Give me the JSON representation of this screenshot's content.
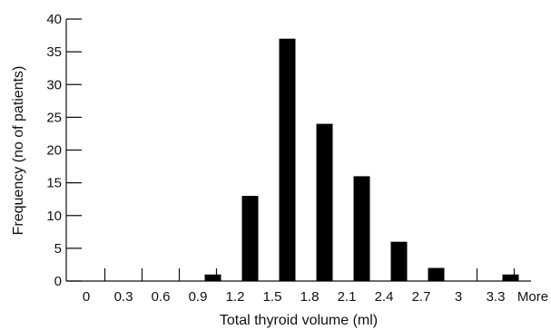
{
  "chart_data": {
    "type": "bar",
    "categories": [
      "0",
      "0.3",
      "0.6",
      "0.9",
      "1.2",
      "1.5",
      "1.8",
      "2.1",
      "2.4",
      "2.7",
      "3",
      "3.3",
      "More"
    ],
    "values": [
      0,
      0,
      0,
      1,
      13,
      37,
      24,
      16,
      6,
      2,
      0,
      1,
      0
    ],
    "xlabel": "Total thyroid volume (ml)",
    "ylabel": "Frequency (no of patients)",
    "ylim": [
      0,
      40
    ],
    "yticks": [
      0,
      5,
      10,
      15,
      20,
      25,
      30,
      35,
      40
    ],
    "grid": false,
    "bar_color": "#000000"
  }
}
